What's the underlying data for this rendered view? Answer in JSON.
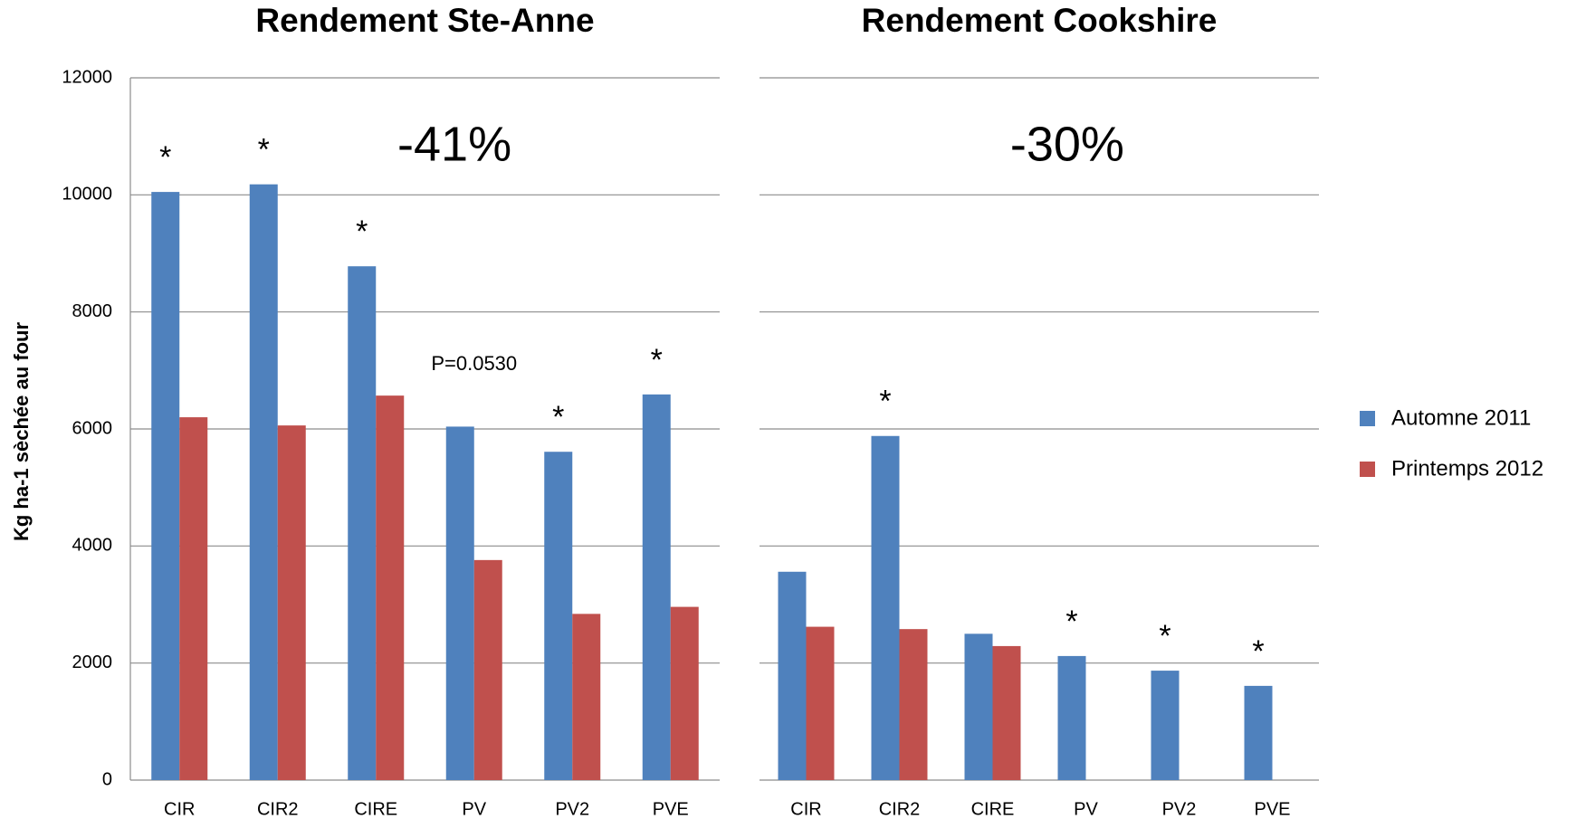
{
  "chart_data": [
    {
      "type": "bar",
      "title": "Rendement Ste-Anne",
      "y_label": "Kg ha-1 sèchée au four",
      "change_label": "-41%",
      "categories": [
        "CIR",
        "CIR2",
        "CIRE",
        "PV",
        "PV2",
        "PVE"
      ],
      "series": [
        {
          "color": "#4f81bd",
          "values": [
            10050,
            10180,
            8780,
            6040,
            5610,
            6590
          ]
        },
        {
          "color": "#c0504d",
          "values": [
            6200,
            6060,
            6570,
            3760,
            2840,
            2960
          ]
        }
      ],
      "annotations": [
        "*",
        "*",
        "*",
        "P=0.0530",
        "*",
        "*"
      ],
      "ylim": [
        0,
        12000
      ],
      "yticks": [
        0,
        2000,
        4000,
        6000,
        8000,
        10000,
        12000
      ],
      "grid": true
    },
    {
      "type": "bar",
      "title": "Rendement Cookshire",
      "change_label": "-30%",
      "categories": [
        "CIR",
        "CIR2",
        "CIRE",
        "PV",
        "PV2",
        "PVE"
      ],
      "series": [
        {
          "name": "Automne 2011",
          "color": "#4f81bd",
          "values": [
            3560,
            5880,
            2500,
            2120,
            1870,
            1610
          ]
        },
        {
          "name": "Printemps 2012",
          "color": "#c0504d",
          "values": [
            2620,
            2580,
            2290,
            null,
            null,
            null
          ]
        }
      ],
      "annotations": [
        null,
        "*",
        null,
        "*",
        "*",
        "*"
      ],
      "ylim": [
        0,
        12000
      ],
      "yticks": [
        0,
        2000,
        4000,
        6000,
        8000,
        10000,
        12000
      ],
      "grid": true,
      "legend": "right"
    }
  ]
}
